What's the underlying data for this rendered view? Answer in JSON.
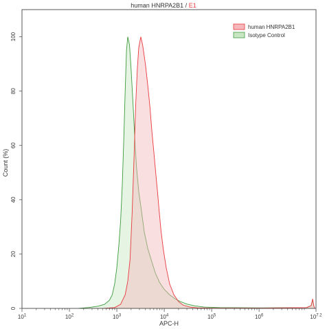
{
  "chart_data": {
    "type": "area",
    "title_main": "human HNRPA2B1",
    "title_sep": " / ",
    "title_accent": "E1",
    "xlabel": "APC-H",
    "ylabel": "Count (%)",
    "xscale": "log",
    "xlim": [
      10,
      15848932
    ],
    "ylim": [
      0,
      110
    ],
    "x_ticks": [
      {
        "value": 10,
        "base": "10",
        "exp": "1"
      },
      {
        "value": 100,
        "base": "10",
        "exp": "2"
      },
      {
        "value": 1000,
        "base": "10",
        "exp": "3"
      },
      {
        "value": 10000,
        "base": "10",
        "exp": "4"
      },
      {
        "value": 100000,
        "base": "10",
        "exp": "5"
      },
      {
        "value": 1000000,
        "base": "10",
        "exp": "6"
      },
      {
        "value": 15848932,
        "base": "10",
        "exp": "7.2"
      }
    ],
    "y_ticks": [
      0,
      20,
      40,
      60,
      80,
      100
    ],
    "legend_position": "top-right",
    "grid": false,
    "series": [
      {
        "name": "human HNRPA2B1",
        "stroke": "#e8383d",
        "fill": "#f5b7ba",
        "points": [
          [
            10,
            0
          ],
          [
            500,
            0
          ],
          [
            900,
            0.3
          ],
          [
            1200,
            1.5
          ],
          [
            1500,
            5
          ],
          [
            1700,
            10
          ],
          [
            1900,
            18
          ],
          [
            2100,
            35
          ],
          [
            2300,
            55
          ],
          [
            2500,
            75
          ],
          [
            2700,
            88
          ],
          [
            2900,
            96
          ],
          [
            3200,
            100
          ],
          [
            3500,
            97
          ],
          [
            4000,
            90
          ],
          [
            4500,
            82
          ],
          [
            5000,
            74
          ],
          [
            5500,
            65
          ],
          [
            6000,
            58
          ],
          [
            6600,
            50
          ],
          [
            7200,
            43
          ],
          [
            7800,
            36
          ],
          [
            8500,
            29
          ],
          [
            9500,
            22
          ],
          [
            11000,
            15
          ],
          [
            13000,
            9
          ],
          [
            16000,
            5
          ],
          [
            20000,
            2.5
          ],
          [
            25000,
            1.2
          ],
          [
            35000,
            0.5
          ],
          [
            50000,
            0.2
          ],
          [
            100000,
            0.1
          ],
          [
            1000000,
            0.1
          ],
          [
            10000000,
            0.3
          ],
          [
            12500000,
            1
          ],
          [
            13500000,
            3.5
          ],
          [
            14200000,
            1
          ],
          [
            15000000,
            0
          ]
        ]
      },
      {
        "name": "Isotype Control",
        "stroke": "#3c9a3c",
        "fill": "#c8e6c4",
        "points": [
          [
            10,
            0
          ],
          [
            150,
            0
          ],
          [
            250,
            0.3
          ],
          [
            400,
            0.8
          ],
          [
            550,
            1.5
          ],
          [
            700,
            3
          ],
          [
            800,
            5
          ],
          [
            900,
            9
          ],
          [
            1000,
            15
          ],
          [
            1100,
            23
          ],
          [
            1200,
            32
          ],
          [
            1300,
            45
          ],
          [
            1400,
            62
          ],
          [
            1500,
            80
          ],
          [
            1600,
            95
          ],
          [
            1700,
            100
          ],
          [
            1850,
            97
          ],
          [
            2000,
            88
          ],
          [
            2200,
            75
          ],
          [
            2400,
            62
          ],
          [
            2600,
            52
          ],
          [
            2900,
            43
          ],
          [
            3300,
            36
          ],
          [
            3800,
            28
          ],
          [
            4500,
            22
          ],
          [
            5500,
            17
          ],
          [
            6500,
            13
          ],
          [
            8000,
            9.5
          ],
          [
            10000,
            7
          ],
          [
            13000,
            5
          ],
          [
            17000,
            3.5
          ],
          [
            22000,
            2.5
          ],
          [
            30000,
            1.6
          ],
          [
            45000,
            0.9
          ],
          [
            70000,
            0.5
          ],
          [
            150000,
            0.3
          ],
          [
            1000000,
            0.2
          ],
          [
            10000000,
            0.3
          ],
          [
            12500000,
            1
          ],
          [
            13500000,
            3
          ],
          [
            14200000,
            1
          ],
          [
            15000000,
            0
          ]
        ]
      }
    ]
  }
}
